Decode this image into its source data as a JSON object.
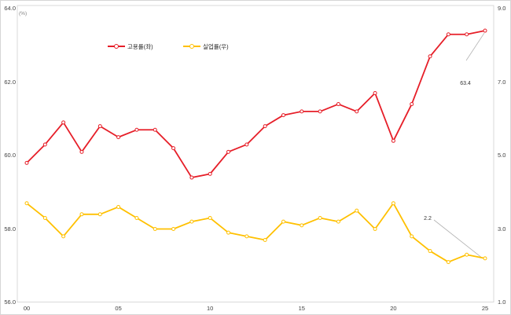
{
  "chart_data": {
    "type": "line",
    "x_values": [
      "00",
      "01",
      "02",
      "03",
      "04",
      "05",
      "06",
      "07",
      "08",
      "09",
      "10",
      "11",
      "12",
      "13",
      "14",
      "15",
      "16",
      "17",
      "18",
      "19",
      "20",
      "21",
      "22",
      "23",
      "24",
      "25"
    ],
    "x_tick_labels": [
      "00",
      "05",
      "10",
      "15",
      "20",
      "25"
    ],
    "series": [
      {
        "name": "고용률(좌)",
        "axis": "left",
        "color": "#e61e28",
        "values": [
          59.8,
          60.3,
          60.9,
          60.1,
          60.8,
          60.5,
          60.7,
          60.7,
          60.2,
          59.4,
          59.5,
          60.1,
          60.3,
          60.8,
          61.1,
          61.2,
          61.2,
          61.4,
          61.2,
          61.7,
          60.4,
          61.4,
          62.7,
          63.3,
          63.3,
          63.4
        ]
      },
      {
        "name": "실업률(우)",
        "axis": "right",
        "color": "#ffc000",
        "values": [
          3.7,
          3.3,
          2.8,
          3.4,
          3.4,
          3.6,
          3.3,
          3.0,
          3.0,
          3.2,
          3.3,
          2.9,
          2.8,
          2.7,
          3.2,
          3.1,
          3.3,
          3.2,
          3.5,
          3.0,
          3.7,
          2.8,
          2.4,
          2.1,
          2.3,
          2.2
        ]
      }
    ],
    "left_axis": {
      "unit_label": "(%)",
      "min": 56.0,
      "max": 64.0,
      "ticks": [
        "64.0",
        "62.0",
        "60.0",
        "58.0",
        "56.0"
      ]
    },
    "right_axis": {
      "min": 1.0,
      "max": 9.0,
      "ticks": [
        "9.0",
        "7.0",
        "5.0",
        "3.0",
        "1.0"
      ]
    },
    "annotations": [
      {
        "text": "63.4",
        "series": 0,
        "year_index": 25
      },
      {
        "text": "2.2",
        "series": 1,
        "year_index": 25
      }
    ],
    "grid": false,
    "legend_position": "top-center",
    "marker": "open-circle",
    "border_color": "#d9d9d9",
    "leader_line_color": "#b3b3b3"
  }
}
